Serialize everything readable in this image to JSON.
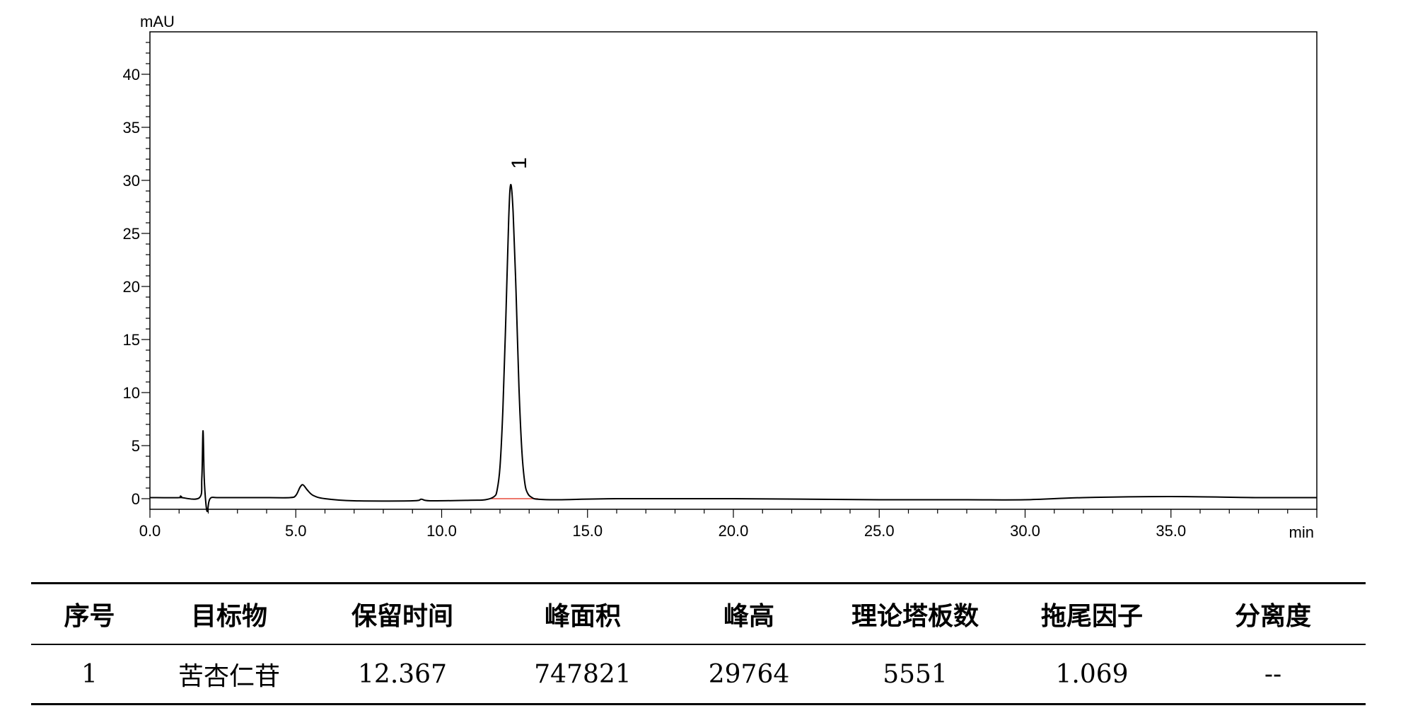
{
  "chart_data": {
    "type": "line",
    "ylabel": "mAU",
    "xlabel": "min",
    "xlim": [
      0.0,
      40.0
    ],
    "ylim": [
      -1.0,
      44.0
    ],
    "x_ticks": [
      "0.0",
      "5.0",
      "10.0",
      "15.0",
      "20.0",
      "25.0",
      "30.0",
      "35.0"
    ],
    "y_ticks": [
      "0",
      "5",
      "10",
      "15",
      "20",
      "25",
      "30",
      "35",
      "40"
    ],
    "grid": false,
    "line_color": "#000000",
    "baseline_color": "#e74c3c",
    "series": [
      {
        "x": [
          0.0,
          1.0,
          1.05,
          1.1,
          1.7,
          1.78,
          1.82,
          1.86,
          1.92,
          1.97,
          2.02,
          2.1,
          2.3,
          3.0,
          4.0,
          4.8,
          5.0,
          5.15,
          5.25,
          5.4,
          5.6,
          6.0,
          7.0,
          9.0,
          9.3,
          9.6,
          11.0,
          11.5,
          11.8,
          11.9,
          12.0,
          12.1,
          12.2,
          12.3,
          12.367,
          12.45,
          12.55,
          12.65,
          12.75,
          12.85,
          12.95,
          13.1,
          13.3,
          14.0,
          16.0,
          20.0,
          25.0,
          28.0,
          30.0,
          32.0,
          35.0,
          38.0,
          40.0
        ],
        "y": [
          0.1,
          0.1,
          0.25,
          0.1,
          0.1,
          2.0,
          6.4,
          2.0,
          -0.5,
          -1.2,
          -0.3,
          0.1,
          0.1,
          0.1,
          0.1,
          0.1,
          0.3,
          1.1,
          1.3,
          0.8,
          0.3,
          0.0,
          -0.2,
          -0.2,
          -0.05,
          -0.2,
          -0.15,
          -0.1,
          0.2,
          0.8,
          3.0,
          8.5,
          17.0,
          26.5,
          29.6,
          27.0,
          19.5,
          10.5,
          4.5,
          1.5,
          0.5,
          0.1,
          -0.05,
          -0.1,
          0.0,
          0.0,
          -0.1,
          -0.1,
          -0.1,
          0.1,
          0.2,
          0.1,
          0.1
        ]
      }
    ],
    "peaks": [
      {
        "label": "1",
        "x": 12.367,
        "y": 29.6,
        "baseline_start": 11.7,
        "baseline_end": 13.3
      }
    ]
  },
  "table": {
    "headers": [
      "序号",
      "目标物",
      "保留时间",
      "峰面积",
      "峰高",
      "理论塔板数",
      "拖尾因子",
      "分离度"
    ],
    "row": [
      "1",
      "苦杏仁苷",
      "12.367",
      "747821",
      "29764",
      "5551",
      "1.069",
      "--"
    ]
  }
}
